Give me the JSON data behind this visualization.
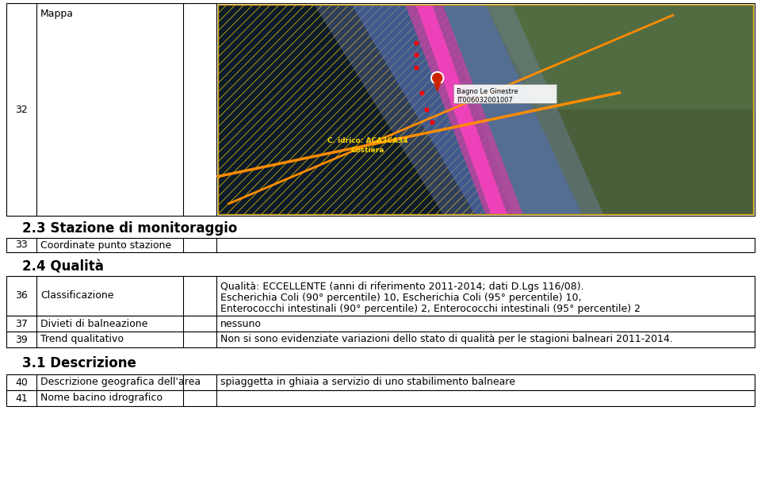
{
  "title_23": "2.3 Stazione di monitoraggio",
  "title_24": "2.4 Qualità",
  "title_31": "3.1 Descrizione",
  "row32_num": "32",
  "row32_label": "Mappa",
  "row33_num": "33",
  "row33_label": "Coordinate punto stazione",
  "row36_num": "36",
  "row36_label": "Classificazione",
  "row36_val_line1": "Qualità: ECCELLENTE (anni di riferimento 2011-2014; dati D.Lgs 116/08).",
  "row36_val_line2": "Escherichia Coli (90° percentile) 10, Escherichia Coli (95° percentile) 10,",
  "row36_val_line3": "Enterococchi intestinali (90° percentile) 2, Enterococchi intestinali (95° percentile) 2",
  "row37_num": "37",
  "row37_label": "Divieti di balneazione",
  "row37_val": "nessuno",
  "row39_num": "39",
  "row39_label": "Trend qualitativo",
  "row39_val": "Non si sono evidenziate variazioni dello stato di qualità per le stagioni balneari 2011-2014.",
  "row40_num": "40",
  "row40_label": "Descrizione geografica dell'area",
  "row40_val": "spiaggetta in ghiaia a servizio di uno stabilimento balneare",
  "row41_num": "41",
  "row41_label": "Nome bacino idrografico",
  "row41_val": "",
  "bg_color": "#ffffff",
  "line_color": "#000000",
  "font_size": 9,
  "header_font_size": 12
}
